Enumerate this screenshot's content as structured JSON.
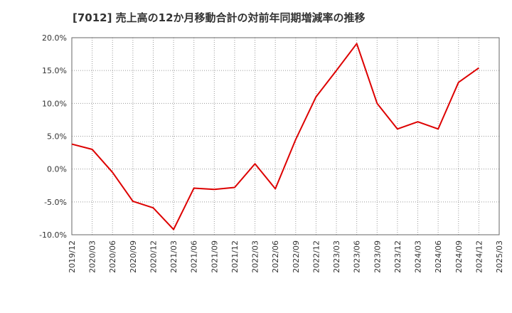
{
  "chart_data": {
    "type": "line",
    "title": "[7012]  売上高の12か月移動合計の対前年同期増減率の推移",
    "xlabel": "",
    "ylabel": "",
    "ylim": [
      -10,
      20
    ],
    "yticks": [
      20,
      15,
      10,
      5,
      0,
      -5,
      -10
    ],
    "ytick_labels": [
      "20.0%",
      "15.0%",
      "10.0%",
      "5.0%",
      "0.0%",
      "-5.0%",
      "-10.0%"
    ],
    "categories": [
      "2019/12",
      "2020/03",
      "2020/06",
      "2020/09",
      "2020/12",
      "2021/03",
      "2021/06",
      "2021/09",
      "2021/12",
      "2022/03",
      "2022/06",
      "2022/09",
      "2022/12",
      "2023/03",
      "2023/06",
      "2023/09",
      "2023/12",
      "2024/03",
      "2024/06",
      "2024/09",
      "2024/12",
      "2025/03"
    ],
    "grid": true,
    "series": [
      {
        "name": "売上高の12か月移動合計の対前年同期増減率",
        "color": "#dd0000",
        "values": [
          3.8,
          3.0,
          -0.5,
          -4.9,
          -5.9,
          -9.2,
          -2.9,
          -3.1,
          -2.8,
          0.8,
          -3.0,
          4.5,
          11.0,
          15.0,
          19.1,
          10.0,
          6.1,
          7.2,
          6.1,
          13.2,
          15.4,
          null
        ]
      }
    ]
  }
}
